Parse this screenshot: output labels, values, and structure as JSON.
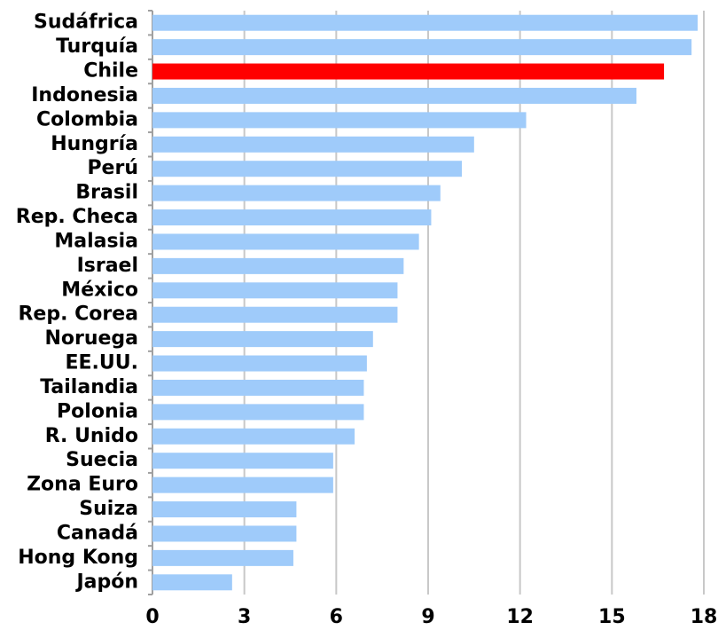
{
  "chart_data": {
    "type": "bar",
    "orientation": "horizontal",
    "categories": [
      "Sudáfrica",
      "Turquía",
      "Chile",
      "Indonesia",
      "Colombia",
      "Hungría",
      "Perú",
      "Brasil",
      "Rep. Checa",
      "Malasia",
      "Israel",
      "México",
      "Rep. Corea",
      "Noruega",
      "EE.UU.",
      "Tailandia",
      "Polonia",
      "R. Unido",
      "Suecia",
      "Zona Euro",
      "Suiza",
      "Canadá",
      "Hong Kong",
      "Japón"
    ],
    "values": [
      17.8,
      17.6,
      16.7,
      15.8,
      12.2,
      10.5,
      10.1,
      9.4,
      9.1,
      8.7,
      8.2,
      8.0,
      8.0,
      7.2,
      7.0,
      6.9,
      6.9,
      6.6,
      5.9,
      5.9,
      4.7,
      4.7,
      4.6,
      2.6
    ],
    "colors": [
      "#9fcbfa",
      "#9fcbfa",
      "#ff0000",
      "#9fcbfa",
      "#9fcbfa",
      "#9fcbfa",
      "#9fcbfa",
      "#9fcbfa",
      "#9fcbfa",
      "#9fcbfa",
      "#9fcbfa",
      "#9fcbfa",
      "#9fcbfa",
      "#9fcbfa",
      "#9fcbfa",
      "#9fcbfa",
      "#9fcbfa",
      "#9fcbfa",
      "#9fcbfa",
      "#9fcbfa",
      "#9fcbfa",
      "#9fcbfa",
      "#9fcbfa",
      "#9fcbfa"
    ],
    "xlim": [
      0,
      18
    ],
    "xticks": [
      0,
      3,
      6,
      9,
      12,
      15,
      18
    ],
    "grid": true
  }
}
